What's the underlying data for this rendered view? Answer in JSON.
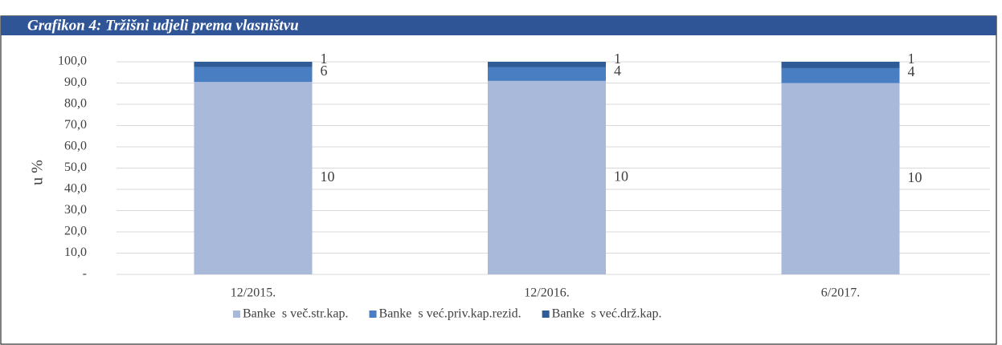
{
  "chart_data": {
    "type": "stacked_bar",
    "title": "Grafikon 4: Tržišni udjeli prema vlasništvu",
    "y_label": "u %",
    "categories": [
      "12/2015.",
      "12/2016.",
      "6/2017."
    ],
    "series": [
      {
        "name": "Banke  s več.str.kap.",
        "color": "#a9b9d9",
        "values": [
          90.5,
          91,
          90
        ],
        "data_labels": [
          10,
          10,
          10
        ]
      },
      {
        "name": "Banke  s već.priv.kap.rezid.",
        "color": "#4a7ec2",
        "values": [
          7,
          6.4,
          7
        ],
        "data_labels": [
          6,
          4,
          4
        ]
      },
      {
        "name": "Banke  s već.drž.kap.",
        "color": "#2f5b97",
        "values": [
          2.5,
          2.6,
          3
        ],
        "data_labels": [
          1,
          1,
          1
        ]
      }
    ],
    "ylim": [
      0,
      100
    ],
    "yticks": [
      {
        "value": 0,
        "label": "-"
      },
      {
        "value": 10,
        "label": "10,0"
      },
      {
        "value": 20,
        "label": "20,0"
      },
      {
        "value": 30,
        "label": "30,0"
      },
      {
        "value": 40,
        "label": "40,0"
      },
      {
        "value": 50,
        "label": "50,0"
      },
      {
        "value": 60,
        "label": "60,0"
      },
      {
        "value": 70,
        "label": "70,0"
      },
      {
        "value": 80,
        "label": "80,0"
      },
      {
        "value": 90,
        "label": "90,0"
      },
      {
        "value": 100,
        "label": "100,0"
      }
    ],
    "grid": true,
    "legend": "bottom"
  }
}
